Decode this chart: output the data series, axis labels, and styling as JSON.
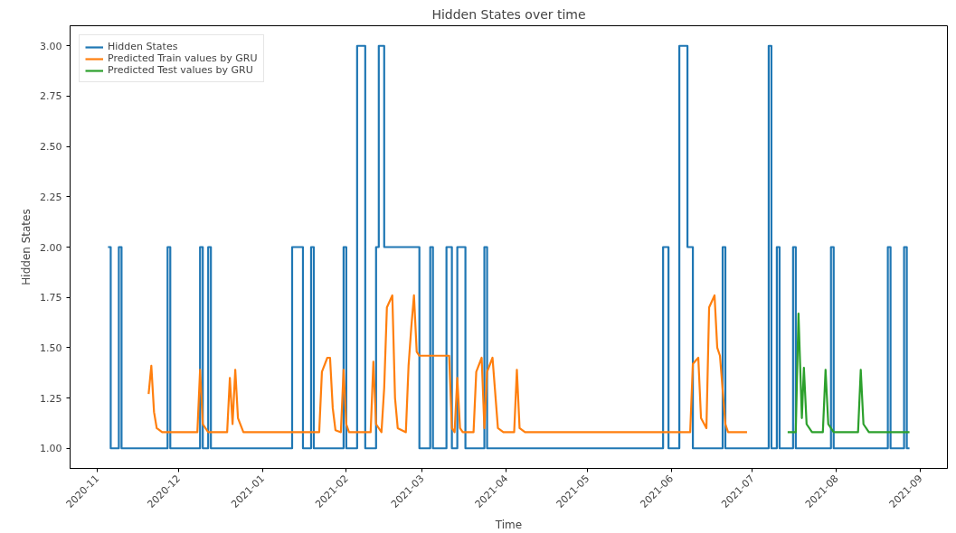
{
  "chart_data": {
    "type": "line",
    "title": "Hidden States over time",
    "xlabel": "Time",
    "ylabel": "Hidden States",
    "xlim": [
      "2020-10-22",
      "2021-09-11"
    ],
    "ylim": [
      0.9,
      3.1
    ],
    "xticks": [
      "2020-11",
      "2020-12",
      "2021-01",
      "2021-02",
      "2021-03",
      "2021-04",
      "2021-05",
      "2021-06",
      "2021-07",
      "2021-08",
      "2021-09"
    ],
    "yticks": [
      {
        "value": 1,
        "label": "1.00"
      },
      {
        "value": 1.25,
        "label": "1.25"
      },
      {
        "value": 1.5,
        "label": "1.50"
      },
      {
        "value": 1.75,
        "label": "1.75"
      },
      {
        "value": 2,
        "label": "2.00"
      },
      {
        "value": 2.25,
        "label": "2.25"
      },
      {
        "value": 2.5,
        "label": "2.50"
      },
      {
        "value": 2.75,
        "label": "2.75"
      },
      {
        "value": 3,
        "label": "3.00"
      }
    ],
    "grid": false,
    "legend": "top left",
    "series": [
      {
        "name": "Hidden States",
        "type": "step",
        "color": "#1f77b4",
        "x": [
          "2020-11-05",
          "2020-11-06",
          "2020-11-09",
          "2020-11-10",
          "2020-11-27",
          "2020-11-28",
          "2020-12-09",
          "2020-12-10",
          "2020-12-12",
          "2020-12-13",
          "2021-01-12",
          "2021-01-16",
          "2021-01-19",
          "2021-01-20",
          "2021-01-31",
          "2021-02-01",
          "2021-02-05",
          "2021-02-08",
          "2021-02-12",
          "2021-02-13",
          "2021-02-15",
          "2021-02-28",
          "2021-03-04",
          "2021-03-05",
          "2021-03-10",
          "2021-03-12",
          "2021-03-14",
          "2021-03-17",
          "2021-03-24",
          "2021-03-25",
          "2021-05-29",
          "2021-05-31",
          "2021-06-04",
          "2021-06-07",
          "2021-06-09",
          "2021-06-20",
          "2021-06-21",
          "2021-07-07",
          "2021-07-08",
          "2021-07-10",
          "2021-07-11",
          "2021-07-16",
          "2021-07-17",
          "2021-07-30",
          "2021-07-31",
          "2021-08-20",
          "2021-08-21",
          "2021-08-26",
          "2021-08-27",
          "2021-08-28"
        ],
        "values": [
          2,
          1,
          2,
          1,
          2,
          1,
          2,
          1,
          2,
          1,
          2,
          1,
          2,
          1,
          2,
          1,
          3,
          1,
          2,
          3,
          2,
          1,
          2,
          1,
          2,
          1,
          2,
          1,
          2,
          1,
          2,
          1,
          3,
          2,
          1,
          2,
          1,
          3,
          1,
          2,
          1,
          2,
          1,
          2,
          1,
          2,
          1,
          2,
          1,
          1
        ]
      },
      {
        "name": "Predicted Train values by GRU",
        "color": "#ff7f0e",
        "x": [
          "2020-11-20",
          "2020-11-21",
          "2020-11-22",
          "2020-11-23",
          "2020-11-25",
          "2020-12-08",
          "2020-12-09",
          "2020-12-10",
          "2020-12-12",
          "2020-12-19",
          "2020-12-20",
          "2020-12-21",
          "2020-12-22",
          "2020-12-23",
          "2020-12-25",
          "2021-01-22",
          "2021-01-23",
          "2021-01-25",
          "2021-01-26",
          "2021-01-27",
          "2021-01-28",
          "2021-01-30",
          "2021-01-31",
          "2021-02-01",
          "2021-02-02",
          "2021-02-10",
          "2021-02-11",
          "2021-02-12",
          "2021-02-14",
          "2021-02-15",
          "2021-02-16",
          "2021-02-18",
          "2021-02-19",
          "2021-02-20",
          "2021-02-23",
          "2021-02-24",
          "2021-02-25",
          "2021-02-26",
          "2021-02-27",
          "2021-02-28",
          "2021-03-11",
          "2021-03-12",
          "2021-03-13",
          "2021-03-14",
          "2021-03-15",
          "2021-03-16",
          "2021-03-20",
          "2021-03-21",
          "2021-03-23",
          "2021-03-24",
          "2021-03-25",
          "2021-03-27",
          "2021-03-29",
          "2021-03-31",
          "2021-04-04",
          "2021-04-05",
          "2021-04-06",
          "2021-04-08",
          "2021-06-08",
          "2021-06-09",
          "2021-06-11",
          "2021-06-12",
          "2021-06-14",
          "2021-06-15",
          "2021-06-17",
          "2021-06-18",
          "2021-06-19",
          "2021-06-21",
          "2021-06-22",
          "2021-06-29"
        ],
        "values": [
          1.27,
          1.41,
          1.18,
          1.1,
          1.08,
          1.08,
          1.39,
          1.12,
          1.08,
          1.08,
          1.35,
          1.12,
          1.39,
          1.15,
          1.08,
          1.08,
          1.38,
          1.45,
          1.45,
          1.2,
          1.09,
          1.08,
          1.39,
          1.12,
          1.08,
          1.08,
          1.43,
          1.12,
          1.08,
          1.3,
          1.7,
          1.76,
          1.25,
          1.1,
          1.08,
          1.41,
          1.6,
          1.76,
          1.48,
          1.46,
          1.46,
          1.1,
          1.08,
          1.35,
          1.1,
          1.08,
          1.08,
          1.38,
          1.45,
          1.1,
          1.38,
          1.45,
          1.1,
          1.08,
          1.08,
          1.39,
          1.1,
          1.08,
          1.08,
          1.42,
          1.45,
          1.15,
          1.1,
          1.7,
          1.76,
          1.5,
          1.46,
          1.12,
          1.08,
          1.08
        ]
      },
      {
        "name": "Predicted Test values by GRU",
        "color": "#2ca02c",
        "x": [
          "2021-07-14",
          "2021-07-17",
          "2021-07-18",
          "2021-07-19T06:00",
          "2021-07-20",
          "2021-07-21",
          "2021-07-23",
          "2021-07-27",
          "2021-07-28",
          "2021-07-29",
          "2021-07-31",
          "2021-08-09",
          "2021-08-10",
          "2021-08-11",
          "2021-08-13",
          "2021-08-28"
        ],
        "values": [
          1.08,
          1.08,
          1.67,
          1.15,
          1.4,
          1.12,
          1.08,
          1.08,
          1.39,
          1.12,
          1.08,
          1.08,
          1.39,
          1.12,
          1.08,
          1.08
        ]
      }
    ]
  }
}
